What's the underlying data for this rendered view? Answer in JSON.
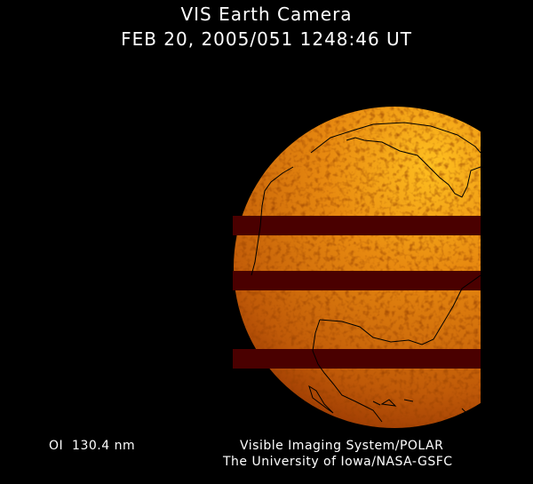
{
  "header": {
    "title": "VIS Earth Camera",
    "timestamp": "FEB 20, 2005/051 1248:46 UT"
  },
  "image": {
    "subject": "earth-disk-far-ultraviolet",
    "colormap": [
      "#000000",
      "#4a0000",
      "#b04000",
      "#e08000",
      "#ffc020"
    ],
    "band_color": "#4a0000"
  },
  "footer": {
    "wavelength": "OI  130.4 nm",
    "instrument": "Visible Imaging System/POLAR",
    "institution": "The University of Iowa/NASA-GSFC"
  }
}
